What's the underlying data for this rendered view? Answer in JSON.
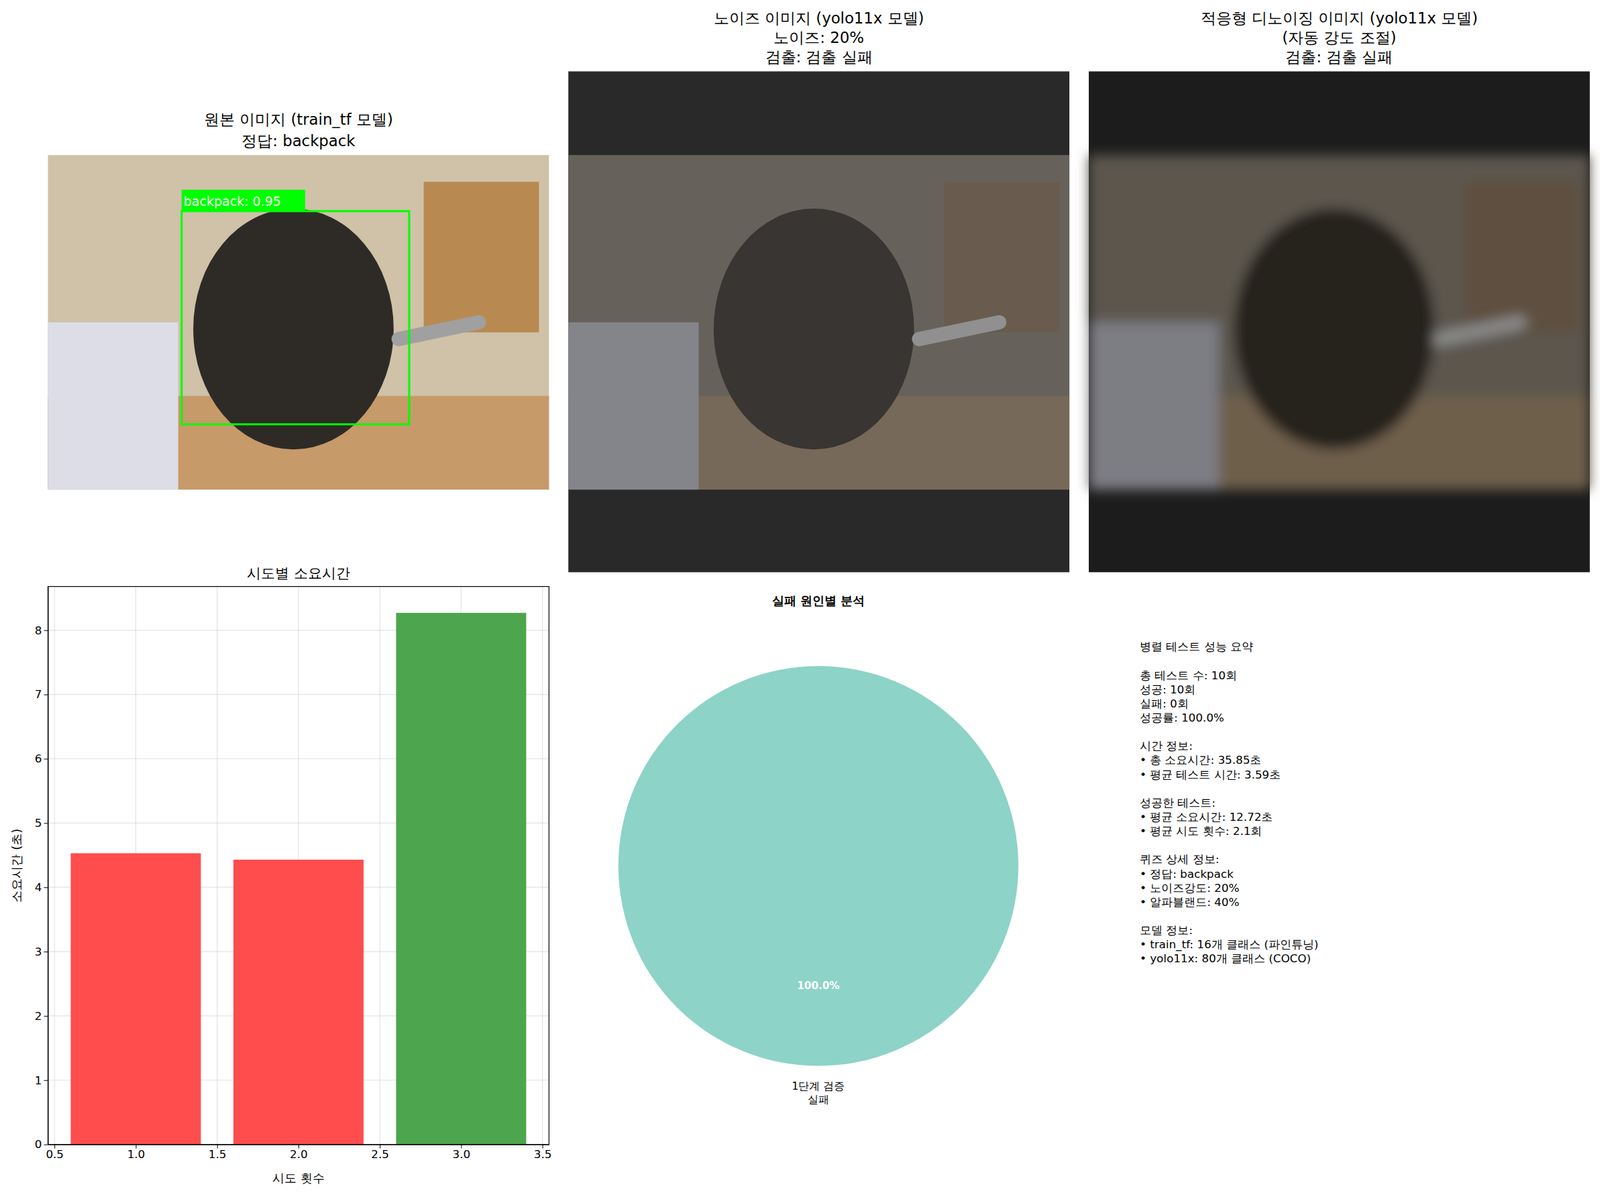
{
  "chart_data": [
    {
      "type": "image",
      "title": "원본 이미지 (train_tf 모델)\n정답: backpack",
      "annotations": [
        "backpack: 0.95"
      ]
    },
    {
      "type": "image",
      "title": "노이즈 이미지 (yolo11x 모델)\n노이즈: 20%\n검출: 검출 실패"
    },
    {
      "type": "image",
      "title": "적응형 디노이징 이미지 (yolo11x 모델)\n(자동 강도 조절)\n검출: 검출 실패"
    },
    {
      "type": "bar",
      "title": "시도별 소요시간",
      "x": [
        1,
        2,
        3
      ],
      "values": [
        4.53,
        4.43,
        8.27
      ],
      "colors": [
        "#ff4d4d",
        "#ff4d4d",
        "#4da64d"
      ],
      "xlabel": "시도 횟수",
      "ylabel": "소요시간 (초)",
      "xlim": [
        0.46,
        3.54
      ],
      "xticks": [
        0.5,
        {
          "value": 1,
          "label": "1.0"
        },
        1.5,
        {
          "value": 2,
          "label": "2.0"
        },
        2.5,
        {
          "value": 3,
          "label": "3.0"
        },
        3.5
      ],
      "ylim": [
        0,
        8.68
      ],
      "yticks": [
        0,
        1,
        2,
        3,
        4,
        5,
        6,
        7,
        8
      ],
      "grid": true
    },
    {
      "type": "pie",
      "title": "실패 원인별 분석",
      "categories": [
        "1단계 검증\n실패"
      ],
      "values": [
        100
      ],
      "value_labels": [
        "100.0%"
      ],
      "colors": [
        "#8dd3c7"
      ],
      "data_labels": true
    },
    {
      "type": "text",
      "lines": [
        [
          "병렬 테스트 성능 요약"
        ],
        [
          "총 테스트 수: 10회",
          "성공: 10회",
          "실패: 0회",
          "성공률: 100.0%"
        ],
        [
          "시간 정보:",
          "• 총 소요시간: 35.85초",
          "• 평균 테스트 시간: 3.59초"
        ],
        [
          "성공한 테스트:",
          "• 평균 소요시간: 12.72초",
          "• 평균 시도 횟수: 2.1회"
        ],
        [
          "퀴즈 상세 정보:",
          "• 정답: backpack",
          "• 노이즈강도: 20%",
          "• 알파블랜드: 40%"
        ],
        [
          "모델 정보:",
          "• train_tf: 16개 클래스 (파인튜닝)",
          "• yolo11x: 80개 클래스 (COCO)"
        ]
      ]
    }
  ]
}
